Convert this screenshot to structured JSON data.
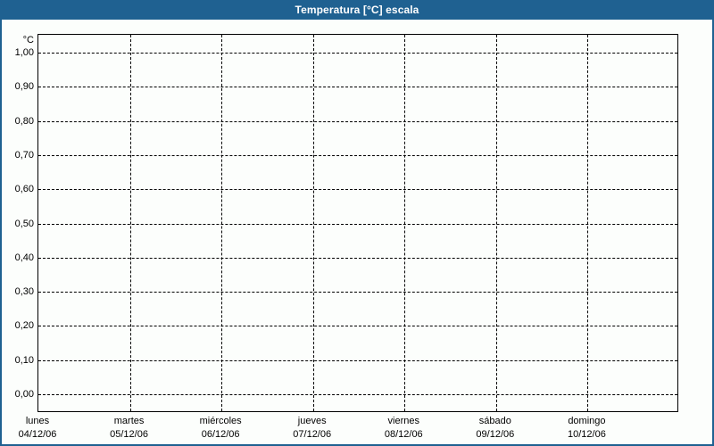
{
  "window": {
    "title": "Temperatura [°C] escala",
    "colors": {
      "title_bar": "#1F6191",
      "title_text": "#FFFFFF",
      "border": "#1F6191",
      "background": "#FCFEFC",
      "grid": "#000000",
      "text": "#000000"
    }
  },
  "chart_data": {
    "type": "line",
    "title": "Temperatura [°C] escala",
    "ylabel": "°C",
    "xlabel": "",
    "legend": "none",
    "grid": {
      "horizontal": "dashed",
      "vertical": "dashed"
    },
    "y_axis": {
      "unit": "°C",
      "min": 0.0,
      "max": 1.0,
      "step": 0.1,
      "decimal_separator": ",",
      "tick_labels": [
        "1,00",
        "0,90",
        "0,80",
        "0,70",
        "0,60",
        "0,50",
        "0,40",
        "0,30",
        "0,20",
        "0,10",
        "0,00"
      ]
    },
    "x_axis": {
      "tick_labels": [
        {
          "day": "lunes",
          "date": "04/12/06"
        },
        {
          "day": "martes",
          "date": "05/12/06"
        },
        {
          "day": "miércoles",
          "date": "06/12/06"
        },
        {
          "day": "jueves",
          "date": "07/12/06"
        },
        {
          "day": "viernes",
          "date": "08/12/06"
        },
        {
          "day": "sábado",
          "date": "09/12/06"
        },
        {
          "day": "domingo",
          "date": "10/12/06"
        }
      ]
    },
    "series": []
  }
}
